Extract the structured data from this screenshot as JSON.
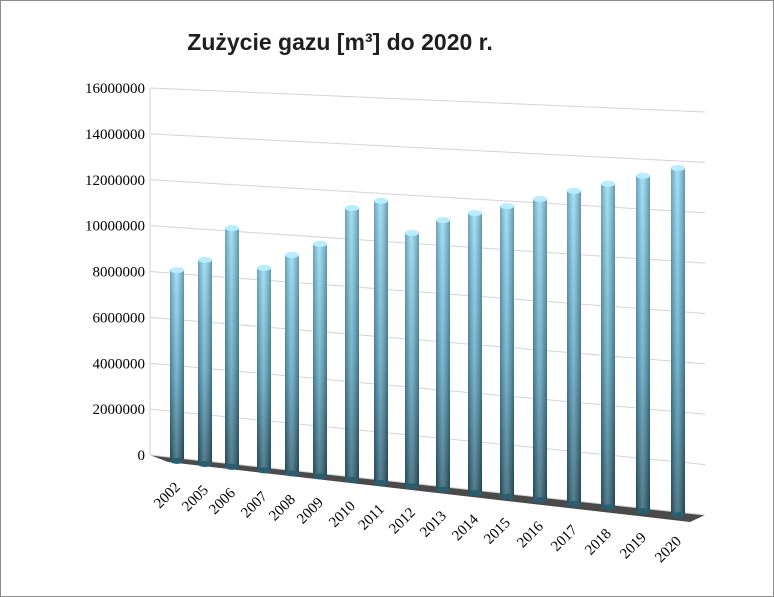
{
  "chart_data": {
    "type": "bar3d",
    "title": "Zużycie gazu [m³] do 2020 r.",
    "categories": [
      "2002",
      "2005",
      "2006",
      "2007",
      "2008",
      "2009",
      "2010",
      "2011",
      "2012",
      "2013",
      "2014",
      "2015",
      "2016",
      "2017",
      "2018",
      "2019",
      "2020"
    ],
    "values": [
      8150000,
      8680000,
      10130000,
      8520000,
      9160000,
      9710000,
      11310000,
      11690000,
      10430000,
      11050000,
      11420000,
      11790000,
      12160000,
      12570000,
      12930000,
      13330000,
      13720000
    ],
    "color": "#5fb8dc",
    "ylim": [
      0,
      16000000
    ],
    "yticks": [
      0,
      2000000,
      4000000,
      6000000,
      8000000,
      10000000,
      12000000,
      14000000,
      16000000
    ],
    "grid": true
  }
}
